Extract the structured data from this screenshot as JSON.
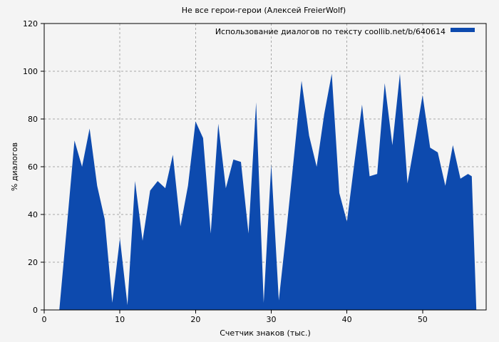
{
  "page": {
    "background": "#f4f4f4"
  },
  "title": "Не все герои-герои (Алексей FreierWolf)",
  "colors": {
    "area": "#0d4aae",
    "axis": "#000000",
    "grid": "#a8a8a8",
    "text": "#000000",
    "background": "#f4f4f4"
  },
  "chart_data": {
    "type": "area",
    "title": "Не все герои-герои (Алексей FreierWolf)",
    "xlabel": "Счетчик знаков (тыс.)",
    "ylabel": "% диалогов",
    "xlim": [
      0,
      58.4
    ],
    "ylim": [
      0,
      120
    ],
    "xticks": [
      0,
      10,
      20,
      30,
      40,
      50
    ],
    "yticks": [
      0,
      20,
      40,
      60,
      80,
      100,
      120
    ],
    "grid": true,
    "legend_position": "top-right-inside",
    "series": [
      {
        "name": "Использование диалогов по тексту coollib.net/b/640614",
        "color": "#0d4aae",
        "x": [
          2,
          3,
          4,
          5,
          6,
          7,
          8,
          9,
          10,
          11,
          12,
          13,
          14,
          15,
          16,
          17,
          18,
          19,
          20,
          21,
          22,
          23,
          24,
          25,
          26,
          27,
          28,
          29,
          30,
          31,
          32,
          33,
          34,
          35,
          36,
          37,
          38,
          39,
          40,
          41,
          42,
          43,
          44,
          45,
          46,
          47,
          48,
          49,
          50,
          51,
          52,
          53,
          54,
          55,
          56,
          56.5,
          57.1
        ],
        "y": [
          0,
          35,
          71,
          60,
          76,
          52,
          38,
          3,
          30,
          2,
          54,
          29,
          50,
          54,
          51,
          65,
          35,
          52,
          79,
          72,
          32,
          78,
          51,
          63,
          62,
          32,
          87,
          3,
          61,
          4,
          33,
          64,
          96,
          73,
          60,
          82,
          99,
          49,
          37,
          62,
          86,
          56,
          57,
          95,
          69,
          99,
          53,
          71,
          90,
          68,
          66,
          52,
          69,
          55,
          57,
          56,
          0
        ]
      }
    ]
  }
}
